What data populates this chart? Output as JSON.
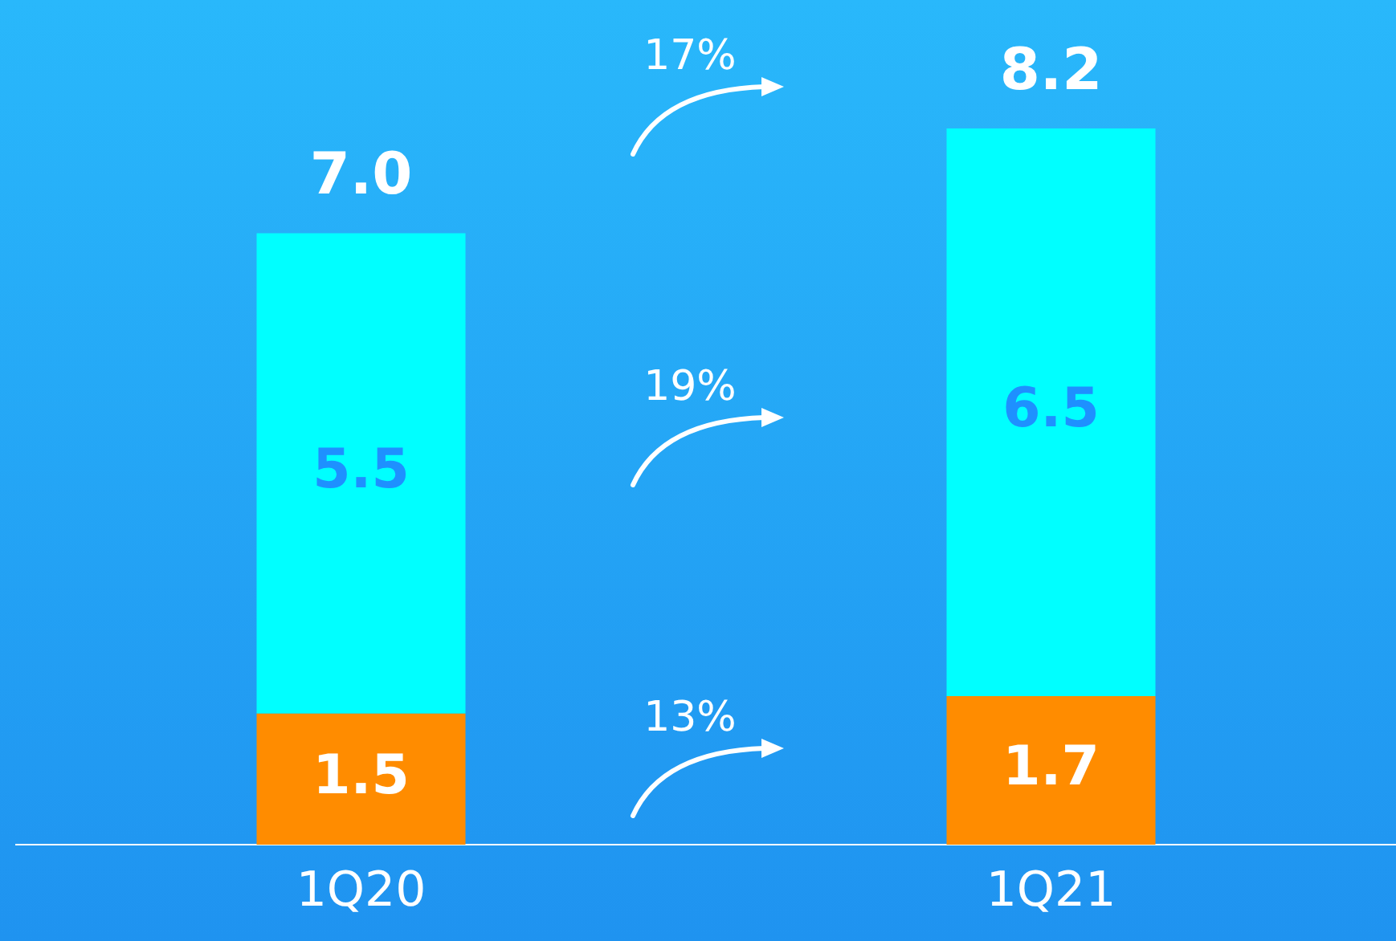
{
  "chart_data": {
    "type": "bar",
    "stacked": true,
    "categories": [
      "1Q20",
      "1Q21"
    ],
    "series": [
      {
        "color": "#ff8c00",
        "values": [
          1.5,
          1.7
        ]
      },
      {
        "color": "#00ffff",
        "values": [
          5.5,
          6.5
        ]
      }
    ],
    "totals": [
      "7.0",
      "8.2"
    ],
    "data_labels": true,
    "annotations": [
      "17%",
      "19%",
      "13%"
    ],
    "tick_labels": "x",
    "grid": false,
    "legend": false
  }
}
